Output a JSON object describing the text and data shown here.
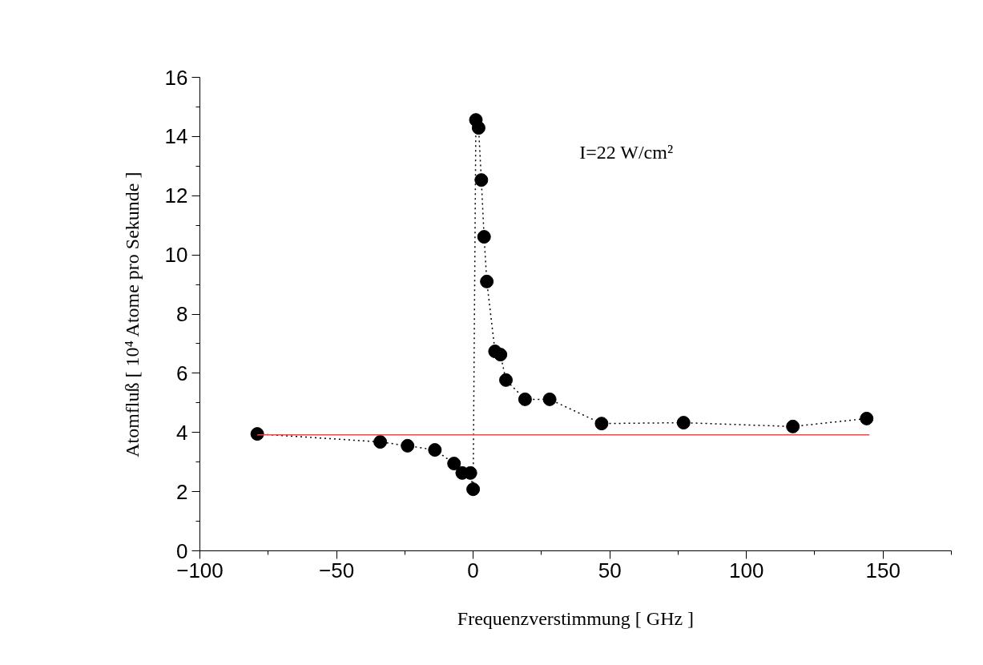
{
  "chart_data": {
    "type": "line",
    "xlabel": "Frequenzverstimmung [ GHz ]",
    "ylabel": "Atomfluß [ 10⁴ Atome pro Sekunde ]",
    "annotations": [
      "I=22 W/cm²"
    ],
    "series": [
      {
        "color": "#000000",
        "line_style": "dotted",
        "x": [
          -79,
          -34,
          -24,
          -14,
          -7,
          -4,
          -1,
          0,
          1,
          2,
          3,
          4,
          5,
          8,
          10,
          12,
          19,
          28,
          47,
          77,
          117,
          144
        ],
        "values": [
          3.95,
          3.68,
          3.55,
          3.41,
          2.95,
          2.63,
          2.63,
          2.08,
          14.56,
          14.29,
          12.53,
          10.61,
          9.1,
          6.74,
          6.63,
          5.77,
          5.12,
          5.12,
          4.3,
          4.33,
          4.2,
          4.47
        ]
      },
      {
        "type": "line",
        "color": "#ff4040",
        "marker": "none",
        "line_style": "solid",
        "x": [
          -79,
          145
        ],
        "values": [
          3.92,
          3.92
        ]
      }
    ],
    "xlim": [
      -100,
      175
    ],
    "ylim": [
      0,
      16
    ],
    "xticks": [
      -100,
      {
        "value": -75,
        "label": null
      },
      -50,
      {
        "value": -25,
        "label": null
      },
      0,
      {
        "value": 25,
        "label": null
      },
      50,
      {
        "value": 75,
        "label": null
      },
      100,
      {
        "value": 125,
        "label": null
      },
      150,
      {
        "value": 175,
        "label": null
      }
    ],
    "yticks": [
      0,
      {
        "value": 1,
        "label": null
      },
      2,
      {
        "value": 3,
        "label": null
      },
      4,
      {
        "value": 5,
        "label": null
      },
      6,
      {
        "value": 7,
        "label": null
      },
      8,
      {
        "value": 9,
        "label": null
      },
      10,
      {
        "value": 11,
        "label": null
      },
      12,
      {
        "value": 13,
        "label": null
      },
      14,
      {
        "value": 15,
        "label": null
      },
      16
    ],
    "marker": "circle"
  }
}
